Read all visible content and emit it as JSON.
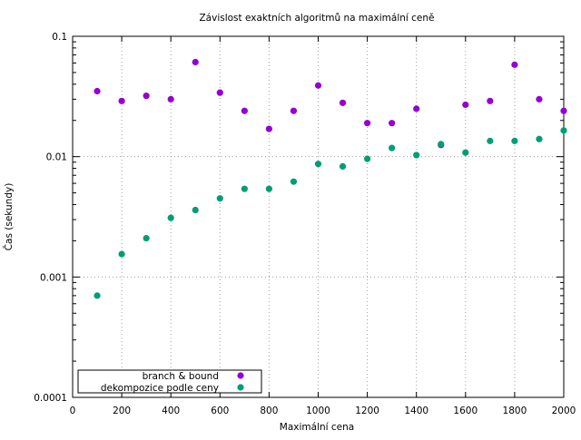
{
  "chart_data": {
    "type": "scatter",
    "title": "Závislost exaktních algoritmů na maximální ceně",
    "xlabel": "Maximální cena",
    "ylabel": "Čas (sekundy)",
    "xlim": [
      0,
      2000
    ],
    "ylim": [
      0.0001,
      0.1
    ],
    "yscale": "log",
    "grid": true,
    "legend_position": "bottom-left",
    "x_ticks": [
      0,
      200,
      400,
      600,
      800,
      1000,
      1200,
      1400,
      1600,
      1800,
      2000
    ],
    "x_tick_labels": [
      "0",
      "200",
      "400",
      "600",
      "800",
      "1000",
      "1200",
      "1400",
      "1600",
      "1800",
      "2000"
    ],
    "y_ticks": [
      0.0001,
      0.001,
      0.01,
      0.1
    ],
    "y_tick_labels": [
      "0.0001",
      "0.001",
      "0.01",
      "0.1"
    ],
    "x": [
      100,
      200,
      300,
      400,
      500,
      600,
      700,
      800,
      900,
      1000,
      1100,
      1200,
      1300,
      1400,
      1500,
      1600,
      1700,
      1800,
      1900,
      2000
    ],
    "series": [
      {
        "name": "branch & bound",
        "color": "#9400d3",
        "values": [
          0.035,
          0.029,
          0.032,
          0.03,
          0.061,
          0.034,
          0.024,
          0.017,
          0.024,
          0.039,
          0.028,
          0.019,
          0.019,
          0.025,
          0.0125,
          0.027,
          0.029,
          0.058,
          0.03,
          0.024
        ]
      },
      {
        "name": "dekompozice podle ceny",
        "color": "#009e73",
        "values": [
          0.0007,
          0.00155,
          0.0021,
          0.0031,
          0.0036,
          0.0045,
          0.0054,
          0.0054,
          0.0062,
          0.0087,
          0.0083,
          0.0096,
          0.0118,
          0.0103,
          0.0127,
          0.0108,
          0.0135,
          0.0135,
          0.014,
          0.0165
        ]
      }
    ]
  }
}
